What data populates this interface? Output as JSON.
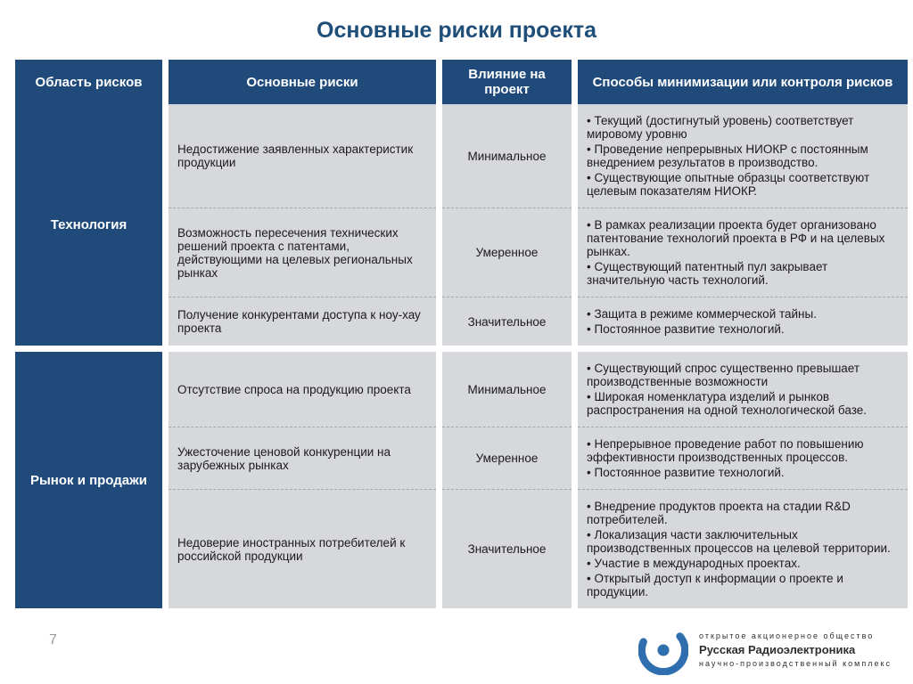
{
  "title": "Основные риски проекта",
  "columns": [
    "Область рисков",
    "Основные риски",
    "Влияние на проект",
    "Способы минимизации или контроля рисков"
  ],
  "groups": [
    {
      "area": "Технология",
      "rows": [
        {
          "risk": "Недостижение заявленных характеристик продукции",
          "impact": "Минимальное",
          "mitigations": [
            "Текущий (достигнутый уровень) соответствует мировому уровню",
            "Проведение непрерывных НИОКР с постоянным внедрением результатов в производство.",
            "Существующие опытные образцы соответствуют целевым показателям НИОКР."
          ]
        },
        {
          "risk": "Возможность пересечения технических решений проекта с патентами, действующими на целевых региональных рынках",
          "impact": "Умеренное",
          "mitigations": [
            "В рамках реализации проекта будет организовано патентование технологий проекта в РФ и на целевых рынках.",
            "Существующий патентный пул закрывает значительную часть технологий."
          ]
        },
        {
          "risk": "Получение конкурентами доступа к ноу-хау проекта",
          "impact": "Значительное",
          "mitigations": [
            "Защита в режиме коммерческой тайны.",
            "Постоянное развитие технологий."
          ]
        }
      ]
    },
    {
      "area": "Рынок и продажи",
      "rows": [
        {
          "risk": "Отсутствие спроса на продукцию проекта",
          "impact": "Минимальное",
          "mitigations": [
            "Существующий спрос существенно превышает производственные возможности",
            "Широкая номенклатура изделий и рынков распространения на одной технологической базе."
          ]
        },
        {
          "risk": "Ужесточение ценовой конкуренции на зарубежных рынках",
          "impact": "Умеренное",
          "mitigations": [
            "Непрерывное проведение работ по повышению эффективности производственных процессов.",
            "Постоянное развитие технологий."
          ]
        },
        {
          "risk": "Недоверие иностранных потребителей к российской продукции",
          "impact": "Значительное",
          "mitigations": [
            "Внедрение продуктов проекта на стадии R&D потребителей.",
            "Локализация части заключительных производственных процессов на целевой территории.",
            "Участие в международных проектах.",
            "Открытый доступ к информации о проекте и продукции."
          ]
        }
      ]
    }
  ],
  "page_number": "7",
  "footer": {
    "line1": "открытое акционерное общество",
    "brand": "Русская Радиоэлектроника",
    "line2": "научно-производственный комплекс"
  },
  "colors": {
    "header_bg": "#1f4a7a",
    "header_fg": "#ffffff",
    "cell_bg": "#d7d8dc",
    "title_color": "#1f4e79",
    "dash": "#a6a7ad",
    "logo_accent": "#2f6fb0"
  }
}
